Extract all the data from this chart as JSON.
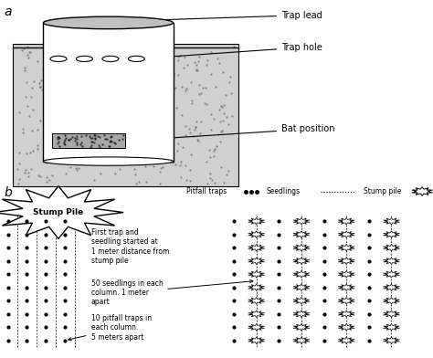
{
  "panel_a_label": "a",
  "panel_b_label": "b",
  "trap_lead_label": "Trap lead",
  "trap_hole_label": "Trap hole",
  "bat_position_label": "Bat position",
  "stump_pile_label": "Stump Pile",
  "legend_pitfall": "Pitfall traps",
  "legend_seedlings": "Seedlings",
  "legend_stump": "Stump pile",
  "annotation1": "First trap and\nseedling started at\n1 meter distance from\nstump pile",
  "annotation2": "50 seedlings in each\ncolumn. 1 meter\napart",
  "annotation3": "10 pitfall traps in\neach column.\n5 meters apart",
  "bg_color": "#ffffff"
}
